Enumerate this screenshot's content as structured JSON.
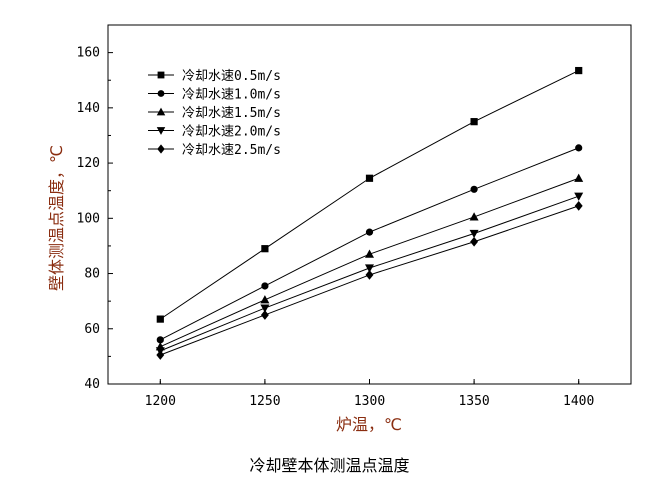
{
  "caption": "冷却壁本体测温点温度",
  "chart_data": {
    "type": "line",
    "title": "",
    "xlabel": "炉温，℃",
    "ylabel": "壁体测温点温度，℃",
    "x": [
      1200,
      1250,
      1300,
      1350,
      1400
    ],
    "xticks": [
      "1200",
      "1250",
      "1300",
      "1350",
      "1400"
    ],
    "xlim": [
      1175,
      1425
    ],
    "yticks": [
      "40",
      "60",
      "80",
      "100",
      "120",
      "140",
      "160"
    ],
    "ylim": [
      40,
      170
    ],
    "grid": false,
    "legend_position": "top-left",
    "axis_title_color": "#8a2d10",
    "series": [
      {
        "name": "冷却水速0.5m/s",
        "marker": "square",
        "values": [
          63.5,
          89,
          114.5,
          135,
          153.5
        ]
      },
      {
        "name": "冷却水速1.0m/s",
        "marker": "circle",
        "values": [
          56,
          75.5,
          95,
          110.5,
          125.5
        ]
      },
      {
        "name": "冷却水速1.5m/s",
        "marker": "triangle-up",
        "values": [
          53.5,
          70.5,
          87,
          100.5,
          114.5
        ]
      },
      {
        "name": "冷却水速2.0m/s",
        "marker": "triangle-down",
        "values": [
          52,
          67.5,
          82,
          94.5,
          108
        ]
      },
      {
        "name": "冷却水速2.5m/s",
        "marker": "diamond",
        "values": [
          50.5,
          65,
          79.5,
          91.5,
          104.5
        ]
      }
    ]
  }
}
